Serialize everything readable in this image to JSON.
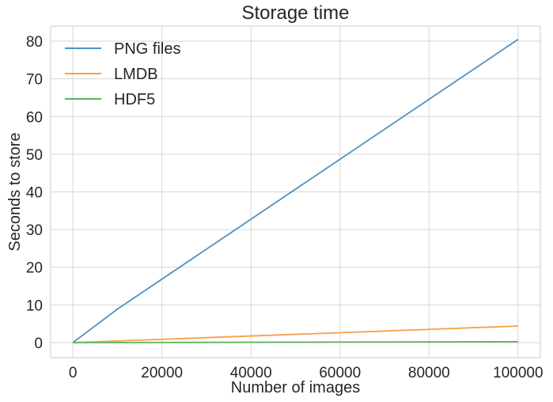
{
  "chart_data": {
    "type": "line",
    "title": "Storage time",
    "xlabel": "Number of images",
    "ylabel": "Seconds to store",
    "xlim": [
      -5000,
      105000
    ],
    "ylim": [
      -4,
      84
    ],
    "xticks": [
      0,
      20000,
      40000,
      60000,
      80000,
      100000
    ],
    "xtick_labels": [
      "0",
      "20000",
      "40000",
      "60000",
      "80000",
      "100000"
    ],
    "yticks": [
      0,
      10,
      20,
      30,
      40,
      50,
      60,
      70,
      80
    ],
    "ytick_labels": [
      "0",
      "10",
      "20",
      "30",
      "40",
      "50",
      "60",
      "70",
      "80"
    ],
    "grid": true,
    "legend_position": "top-left",
    "x": [
      10,
      100,
      1000,
      10000,
      100000
    ],
    "series": [
      {
        "name": "PNG files",
        "color": "#4c92c3",
        "values": [
          0.01,
          0.09,
          0.9,
          8.9,
          80.5
        ]
      },
      {
        "name": "LMDB",
        "color": "#f5a04b",
        "values": [
          0.0,
          0.0,
          0.04,
          0.44,
          4.4
        ]
      },
      {
        "name": "HDF5",
        "color": "#5bb35b",
        "values": [
          0.0,
          0.0,
          0.002,
          0.02,
          0.25
        ]
      }
    ]
  }
}
